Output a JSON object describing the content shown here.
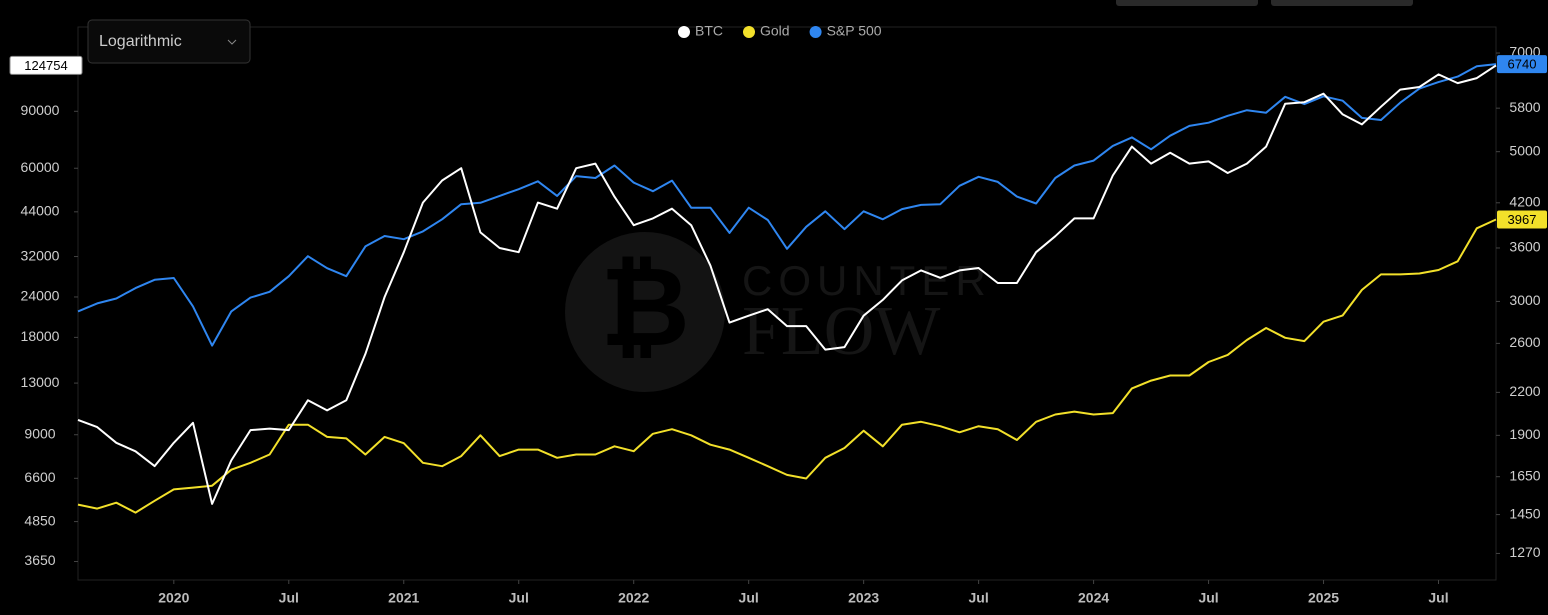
{
  "chart_data": {
    "type": "line",
    "log_scale": true,
    "scale_selector": "Logarithmic",
    "watermark": [
      "COUNTER",
      "FLOW"
    ],
    "x": [
      "2019-08",
      "2019-09",
      "2019-10",
      "2019-11",
      "2019-12",
      "2020-01",
      "2020-02",
      "2020-03",
      "2020-04",
      "2020-05",
      "2020-06",
      "2020-07",
      "2020-08",
      "2020-09",
      "2020-10",
      "2020-11",
      "2020-12",
      "2021-01",
      "2021-02",
      "2021-03",
      "2021-04",
      "2021-05",
      "2021-06",
      "2021-07",
      "2021-08",
      "2021-09",
      "2021-10",
      "2021-11",
      "2021-12",
      "2022-01",
      "2022-02",
      "2022-03",
      "2022-04",
      "2022-05",
      "2022-06",
      "2022-07",
      "2022-08",
      "2022-09",
      "2022-10",
      "2022-11",
      "2022-12",
      "2023-01",
      "2023-02",
      "2023-03",
      "2023-04",
      "2023-05",
      "2023-06",
      "2023-07",
      "2023-08",
      "2023-09",
      "2023-10",
      "2023-11",
      "2023-12",
      "2024-01",
      "2024-02",
      "2024-03",
      "2024-04",
      "2024-05",
      "2024-06",
      "2024-07",
      "2024-08",
      "2024-09",
      "2024-10",
      "2024-11",
      "2024-12",
      "2025-01",
      "2025-02",
      "2025-03",
      "2025-04",
      "2025-05",
      "2025-06",
      "2025-07",
      "2025-08",
      "2025-09",
      "2025-10"
    ],
    "xlim": [
      "2019-08",
      "2025-10"
    ],
    "xticks": [
      {
        "value": "2020-01",
        "label": "2020"
      },
      {
        "value": "2020-07",
        "label": "Jul"
      },
      {
        "value": "2021-01",
        "label": "2021"
      },
      {
        "value": "2021-07",
        "label": "Jul"
      },
      {
        "value": "2022-01",
        "label": "2022"
      },
      {
        "value": "2022-07",
        "label": "Jul"
      },
      {
        "value": "2023-01",
        "label": "2023"
      },
      {
        "value": "2023-07",
        "label": "Jul"
      },
      {
        "value": "2024-01",
        "label": "2024"
      },
      {
        "value": "2024-07",
        "label": "Jul"
      },
      {
        "value": "2025-01",
        "label": "2025"
      },
      {
        "value": "2025-07",
        "label": "Jul"
      }
    ],
    "ylim": [
      3200,
      164000
    ],
    "yticks": [
      3650,
      4850,
      6600,
      9000,
      13000,
      18000,
      24000,
      32000,
      44000,
      60000,
      90000
    ],
    "y2lim": [
      1160,
      7650
    ],
    "y2ticks": [
      1270,
      1450,
      1650,
      1900,
      2200,
      2600,
      3000,
      3600,
      4200,
      5000,
      5800,
      7000
    ],
    "series": [
      {
        "name": "BTC",
        "color": "#ffffff",
        "axis": "y",
        "values": [
          10000,
          9500,
          8500,
          8000,
          7200,
          8500,
          9800,
          5500,
          7500,
          9300,
          9400,
          9300,
          11500,
          10700,
          11500,
          16000,
          24000,
          33000,
          47000,
          55000,
          60000,
          38000,
          34000,
          33000,
          47000,
          45000,
          60000,
          62000,
          49000,
          40000,
          42000,
          45000,
          40000,
          30000,
          20000,
          21000,
          22000,
          19500,
          19500,
          16500,
          16800,
          21000,
          23500,
          27000,
          29000,
          27500,
          29000,
          29500,
          26500,
          26500,
          33000,
          37000,
          42000,
          42000,
          57000,
          70000,
          62000,
          67000,
          62000,
          63000,
          58000,
          62000,
          70000,
          95000,
          96000,
          102000,
          88000,
          82000,
          93000,
          105000,
          107000,
          117000,
          110000,
          114000,
          124754
        ]
      },
      {
        "name": "Gold",
        "color": "#f2e02a",
        "axis": "y2",
        "values": [
          1500,
          1480,
          1510,
          1460,
          1520,
          1580,
          1590,
          1600,
          1690,
          1730,
          1780,
          1970,
          1970,
          1890,
          1880,
          1780,
          1890,
          1850,
          1730,
          1710,
          1770,
          1900,
          1770,
          1810,
          1810,
          1760,
          1780,
          1780,
          1830,
          1800,
          1910,
          1940,
          1900,
          1840,
          1810,
          1760,
          1710,
          1660,
          1640,
          1760,
          1820,
          1930,
          1830,
          1970,
          1990,
          1960,
          1920,
          1960,
          1940,
          1870,
          1990,
          2040,
          2060,
          2040,
          2050,
          2230,
          2290,
          2330,
          2330,
          2440,
          2500,
          2630,
          2740,
          2650,
          2620,
          2800,
          2860,
          3120,
          3290,
          3290,
          3300,
          3340,
          3440,
          3850,
          3967
        ]
      },
      {
        "name": "S&P 500",
        "color": "#2f86f0",
        "axis": "y2",
        "values": [
          2900,
          2980,
          3030,
          3140,
          3230,
          3250,
          2950,
          2580,
          2900,
          3040,
          3100,
          3270,
          3500,
          3360,
          3270,
          3620,
          3750,
          3710,
          3810,
          3970,
          4180,
          4200,
          4300,
          4400,
          4520,
          4300,
          4600,
          4570,
          4770,
          4500,
          4370,
          4530,
          4130,
          4130,
          3790,
          4130,
          3960,
          3590,
          3870,
          4080,
          3840,
          4080,
          3970,
          4110,
          4170,
          4180,
          4450,
          4590,
          4510,
          4290,
          4190,
          4570,
          4770,
          4850,
          5100,
          5250,
          5040,
          5280,
          5460,
          5520,
          5650,
          5760,
          5710,
          6030,
          5880,
          6040,
          5950,
          5610,
          5570,
          5910,
          6200,
          6340,
          6460,
          6690,
          6740
        ]
      }
    ]
  }
}
